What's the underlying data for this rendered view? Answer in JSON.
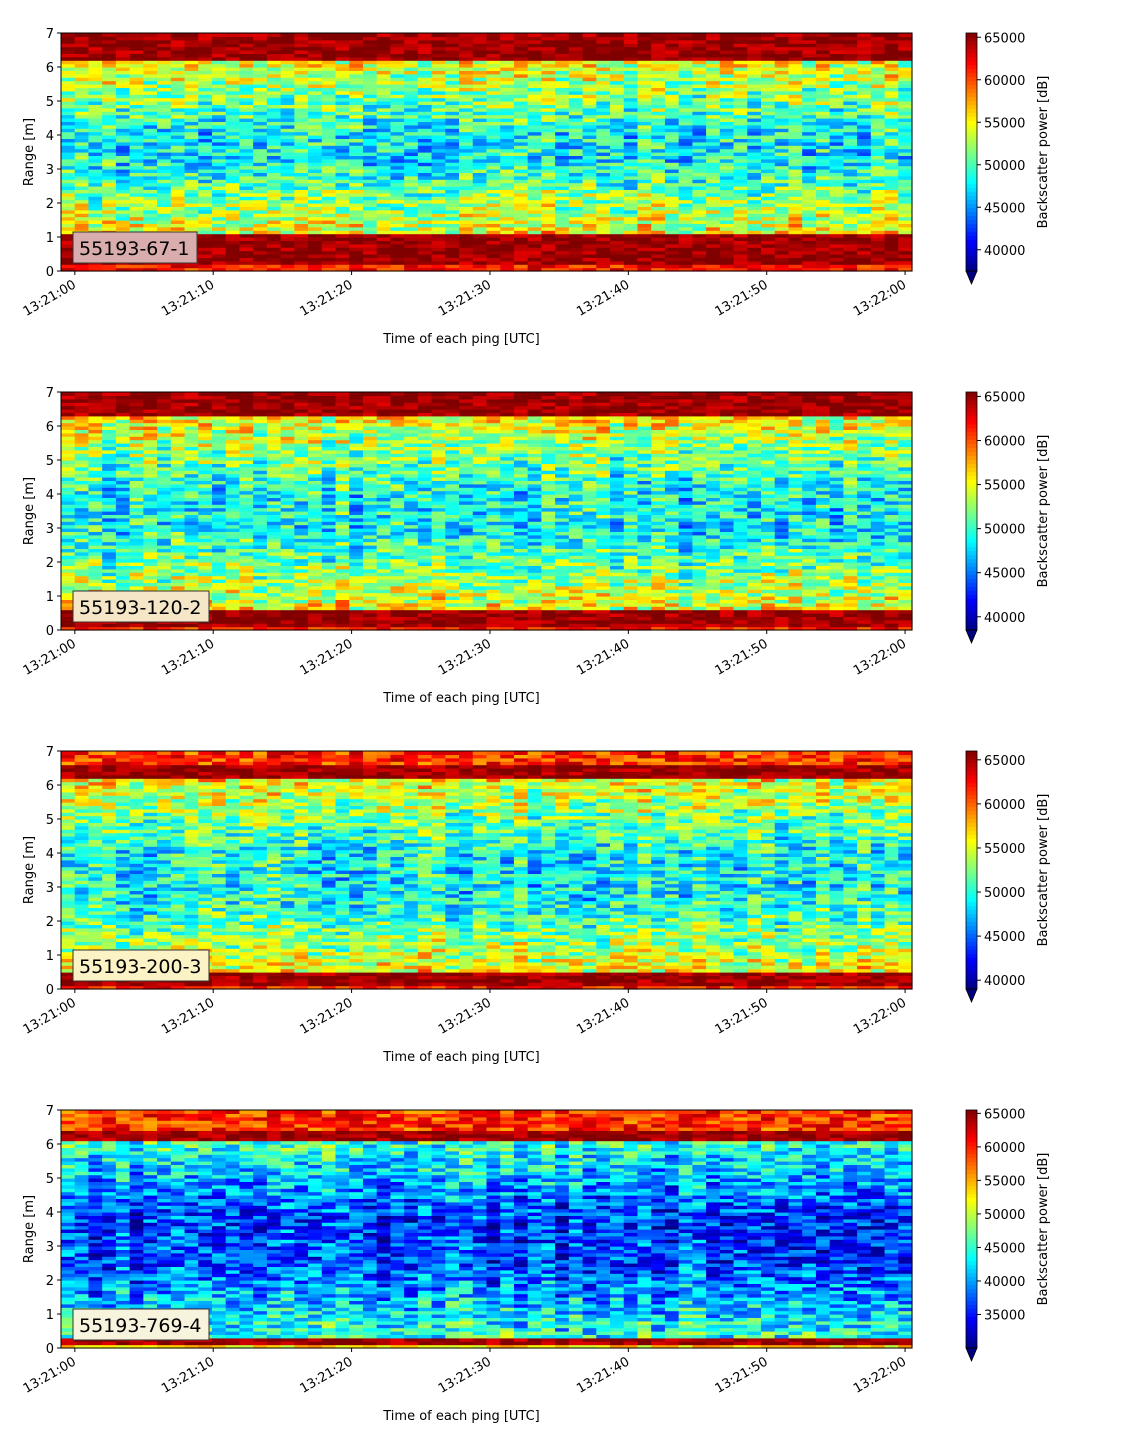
{
  "chart_data": [
    {
      "type": "heatmap",
      "label": "55193-67-1",
      "xlabel": "Time of each ping [UTC]",
      "ylabel": "Range [m]",
      "colorbar_label": "Backscatter power [dB]",
      "xlim": [
        "13:20:59",
        "13:22:00.5"
      ],
      "ylim": [
        0,
        7
      ],
      "x_ticks": [
        "13:21:00",
        "13:21:10",
        "13:21:20",
        "13:21:30",
        "13:21:40",
        "13:21:50",
        "13:22:00"
      ],
      "y_ticks": [
        0,
        1,
        2,
        3,
        4,
        5,
        6,
        7
      ],
      "clim": [
        37500,
        65500
      ],
      "colorbar_ticks": [
        40000,
        45000,
        50000,
        55000,
        60000,
        65000
      ],
      "colorbar_extend": "min",
      "label_box_color": "#d9adad",
      "pattern": {
        "bottom_high": true,
        "top_band": [
          6.2,
          7.0
        ],
        "bottom_band": [
          0.25,
          1.1
        ]
      },
      "colormap": "jet"
    },
    {
      "type": "heatmap",
      "label": "55193-120-2",
      "xlabel": "Time of each ping [UTC]",
      "ylabel": "Range [m]",
      "colorbar_label": "Backscatter power [dB]",
      "xlim": [
        "13:20:59",
        "13:22:00.5"
      ],
      "ylim": [
        0,
        7
      ],
      "x_ticks": [
        "13:21:00",
        "13:21:10",
        "13:21:20",
        "13:21:30",
        "13:21:40",
        "13:21:50",
        "13:22:00"
      ],
      "y_ticks": [
        0,
        1,
        2,
        3,
        4,
        5,
        6,
        7
      ],
      "clim": [
        38500,
        65500
      ],
      "colorbar_ticks": [
        40000,
        45000,
        50000,
        55000,
        60000,
        65000
      ],
      "colorbar_extend": "min",
      "label_box_color": "#f4e6c6",
      "pattern": {
        "bottom_high": true,
        "top_band": [
          6.3,
          7.0
        ],
        "bottom_band": [
          0.1,
          0.6
        ]
      },
      "colormap": "jet"
    },
    {
      "type": "heatmap",
      "label": "55193-200-3",
      "xlabel": "Time of each ping [UTC]",
      "ylabel": "Range [m]",
      "colorbar_label": "Backscatter power [dB]",
      "xlim": [
        "13:20:59",
        "13:22:00.5"
      ],
      "ylim": [
        0,
        7
      ],
      "x_ticks": [
        "13:21:00",
        "13:21:10",
        "13:21:20",
        "13:21:30",
        "13:21:40",
        "13:21:50",
        "13:22:00"
      ],
      "y_ticks": [
        0,
        1,
        2,
        3,
        4,
        5,
        6,
        7
      ],
      "clim": [
        39000,
        66000
      ],
      "colorbar_ticks": [
        40000,
        45000,
        50000,
        55000,
        60000,
        65000
      ],
      "colorbar_extend": "min",
      "label_box_color": "#fbf2c6",
      "pattern": {
        "bottom_high": true,
        "top_band": [
          6.2,
          6.6
        ],
        "bottom_band": [
          0.1,
          0.5
        ]
      },
      "colormap": "jet"
    },
    {
      "type": "heatmap",
      "label": "55193-769-4",
      "xlabel": "Time of each ping [UTC]",
      "ylabel": "Range [m]",
      "colorbar_label": "Backscatter power [dB]",
      "xlim": [
        "13:20:59",
        "13:22:00.5"
      ],
      "ylim": [
        0,
        7
      ],
      "x_ticks": [
        "13:21:00",
        "13:21:10",
        "13:21:20",
        "13:21:30",
        "13:21:40",
        "13:21:50",
        "13:22:00"
      ],
      "y_ticks": [
        0,
        1,
        2,
        3,
        4,
        5,
        6,
        7
      ],
      "clim": [
        30000,
        65500
      ],
      "colorbar_ticks": [
        35000,
        40000,
        45000,
        50000,
        55000,
        60000,
        65000
      ],
      "colorbar_extend": "min",
      "label_box_color": "#f7f3dc",
      "pattern": {
        "bottom_high": false,
        "top_band": [
          6.1,
          6.35
        ],
        "bottom_band": [
          0.15,
          0.35
        ]
      },
      "colormap": "jet"
    }
  ]
}
